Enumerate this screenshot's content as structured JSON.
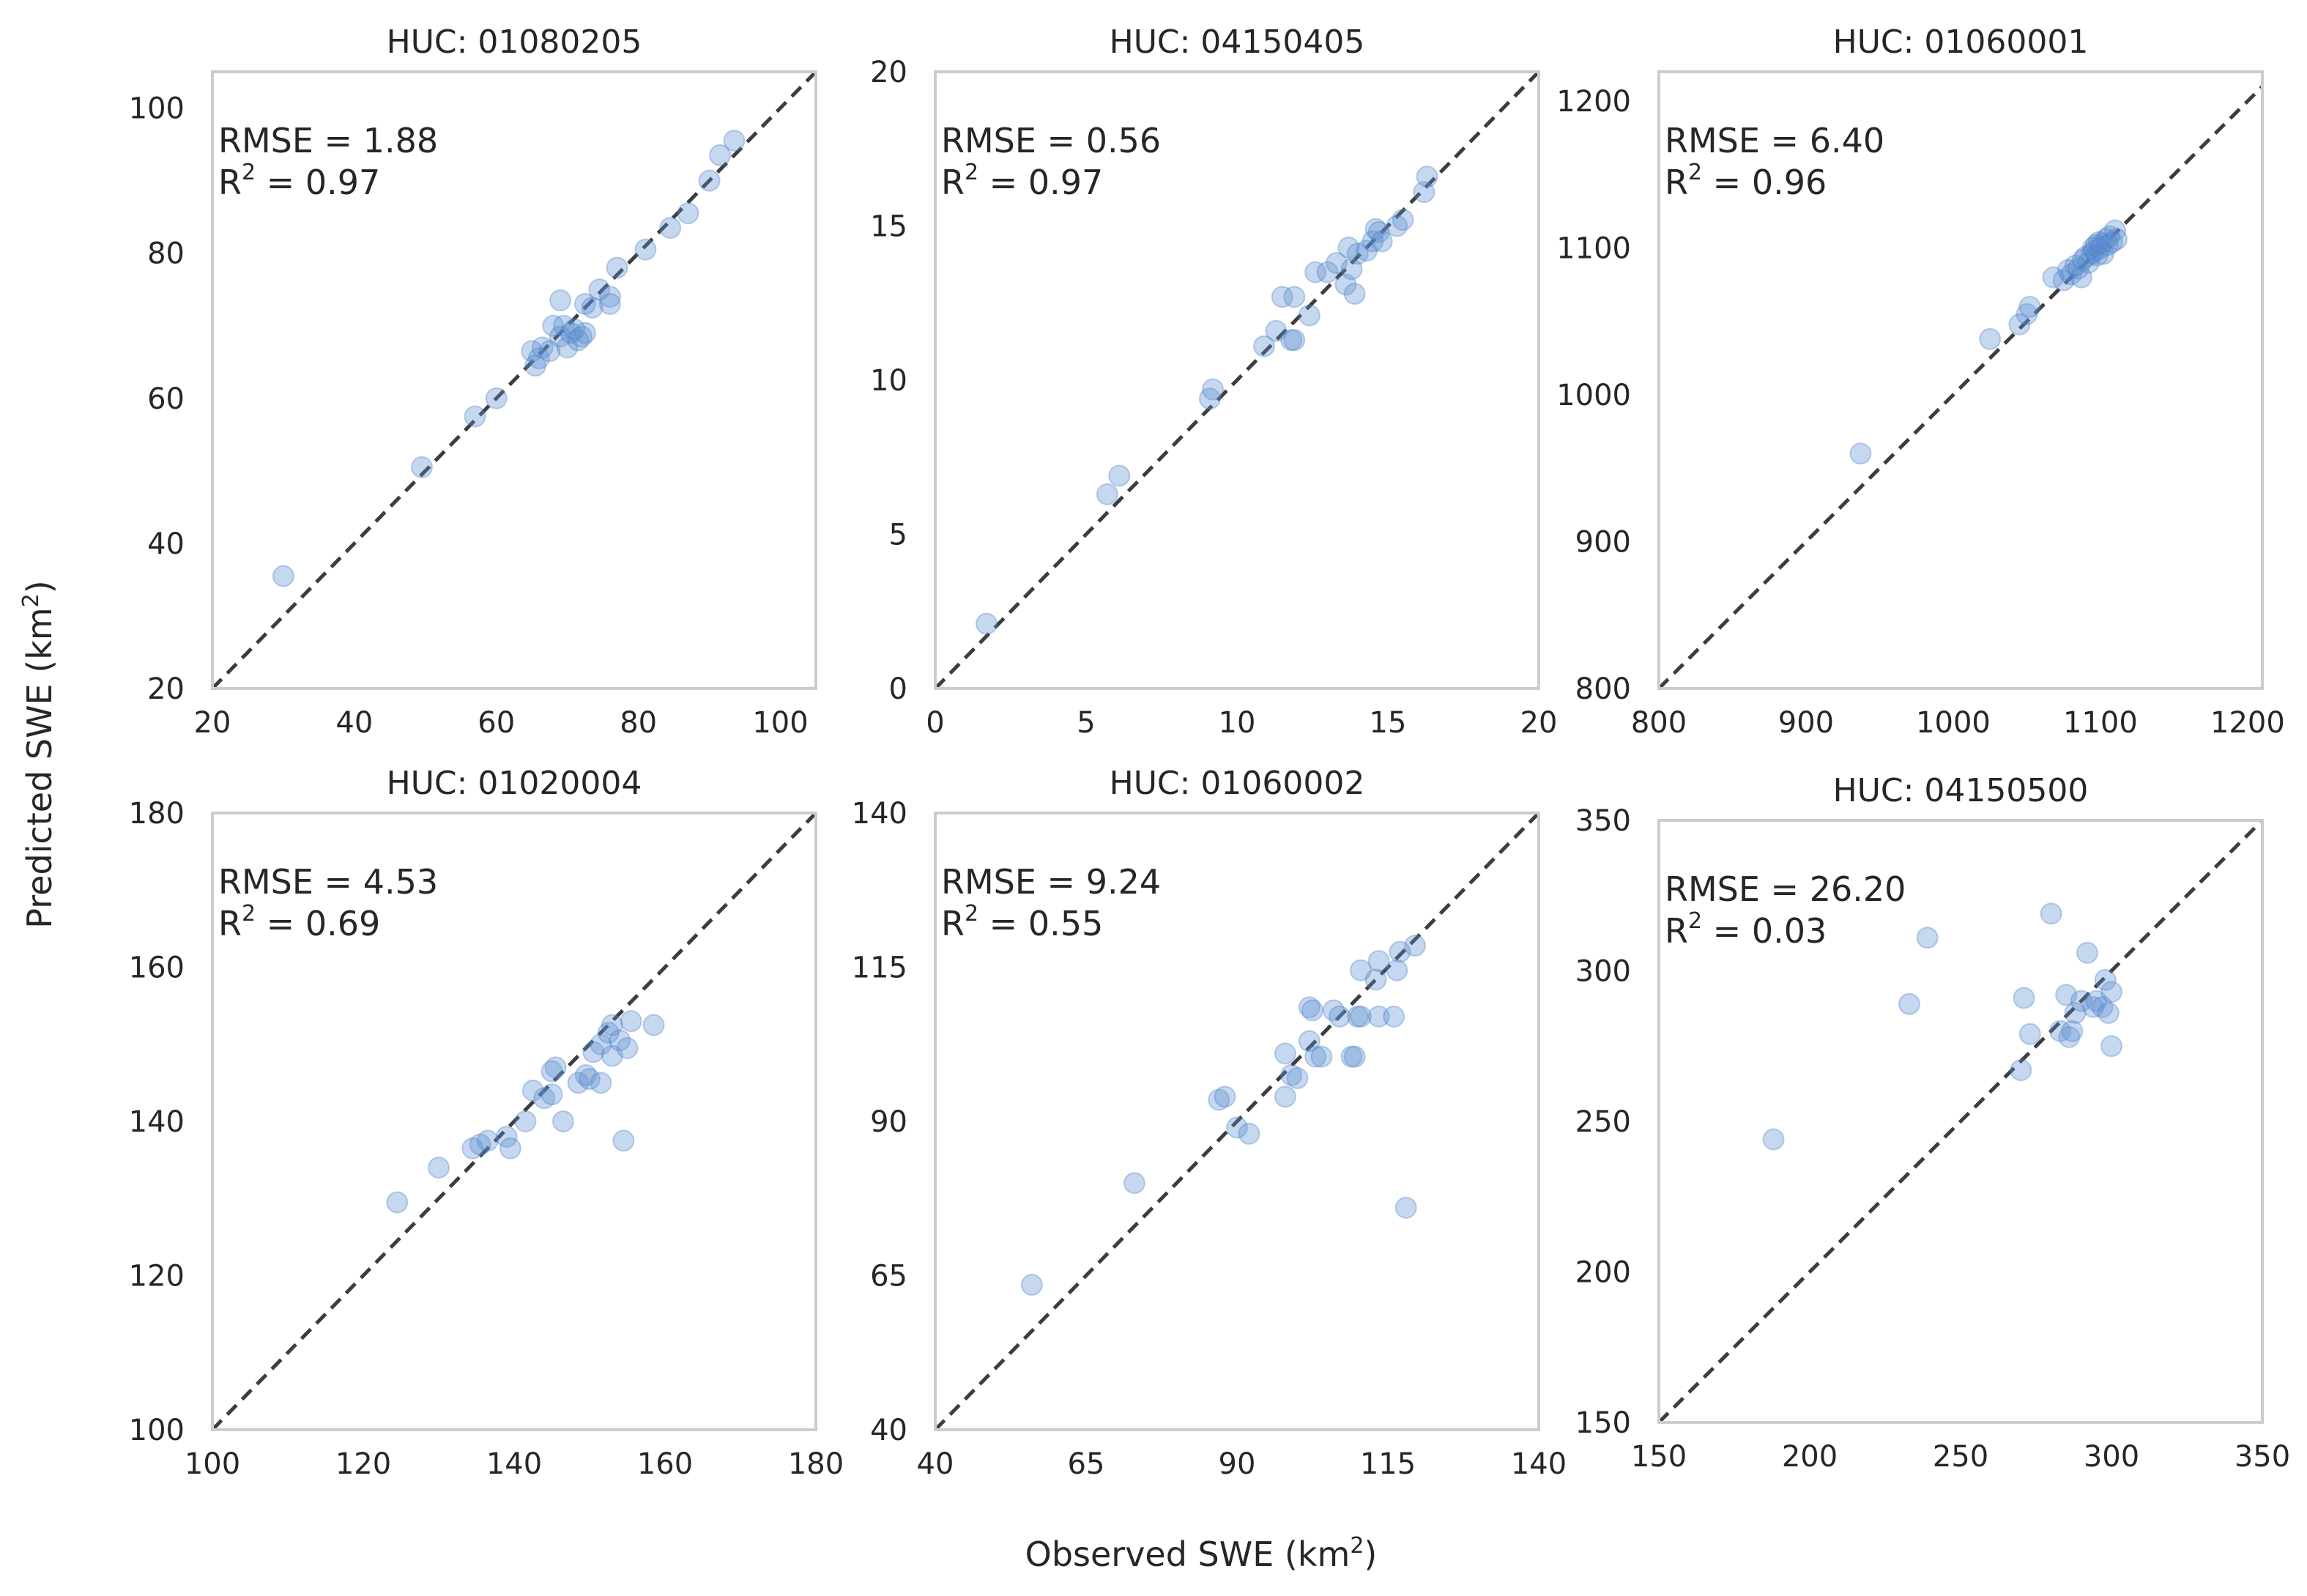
{
  "figure": {
    "xlabel": "Observed SWE (km",
    "ylabel": "Predicted SWE (km",
    "label_close": ")",
    "unit_superscript": "2"
  },
  "style": {
    "point_color": "#5b8fd1",
    "point_alpha": 0.35,
    "point_stroke": "#4a7ec2",
    "diagonal_color": "#3d3d3d",
    "frame_color": "#cccccc"
  },
  "chart_data": [
    {
      "type": "scatter",
      "title": "HUC: 01080205",
      "rmse_text": "RMSE = 1.88",
      "r2_label": "R",
      "r2_sup": "2",
      "r2_value": " = 0.97",
      "xlim": [
        20,
        105
      ],
      "ylim": [
        20,
        105
      ],
      "xticks": [
        20,
        40,
        60,
        80,
        100
      ],
      "yticks": [
        20,
        40,
        60,
        80,
        100
      ],
      "xlabel": "",
      "ylabel": "",
      "points": [
        [
          30,
          35.5
        ],
        [
          49.5,
          50.5
        ],
        [
          57,
          57.5
        ],
        [
          60,
          60
        ],
        [
          65,
          66.5
        ],
        [
          65.5,
          64.5
        ],
        [
          66,
          65.5
        ],
        [
          66.5,
          67
        ],
        [
          67.5,
          66.5
        ],
        [
          68,
          70
        ],
        [
          69,
          68.5
        ],
        [
          69,
          73.5
        ],
        [
          69.5,
          70
        ],
        [
          70,
          67
        ],
        [
          70.5,
          69
        ],
        [
          71,
          69.5
        ],
        [
          71.5,
          68
        ],
        [
          72,
          68.5
        ],
        [
          72.5,
          69
        ],
        [
          72.5,
          73
        ],
        [
          73.5,
          72.5
        ],
        [
          74.5,
          75
        ],
        [
          76,
          74
        ],
        [
          76,
          73
        ],
        [
          77,
          78
        ],
        [
          81,
          80.5
        ],
        [
          84.5,
          83.5
        ],
        [
          87,
          85.5
        ],
        [
          90,
          90
        ],
        [
          91.5,
          93.5
        ],
        [
          93.5,
          95.5
        ]
      ]
    },
    {
      "type": "scatter",
      "title": "HUC: 04150405",
      "rmse_text": "RMSE = 0.56",
      "r2_label": "R",
      "r2_sup": "2",
      "r2_value": " = 0.97",
      "xlim": [
        0,
        20
      ],
      "ylim": [
        0,
        20
      ],
      "xticks": [
        0,
        5,
        10,
        15,
        20
      ],
      "yticks": [
        0,
        5,
        10,
        15,
        20
      ],
      "xlabel": "",
      "ylabel": "",
      "points": [
        [
          1.7,
          2.1
        ],
        [
          5.7,
          6.3
        ],
        [
          6.1,
          6.9
        ],
        [
          9.1,
          9.4
        ],
        [
          9.2,
          9.7
        ],
        [
          10.9,
          11.1
        ],
        [
          11.3,
          11.6
        ],
        [
          11.5,
          12.7
        ],
        [
          11.8,
          11.3
        ],
        [
          11.9,
          12.7
        ],
        [
          11.9,
          11.3
        ],
        [
          12.4,
          12.1
        ],
        [
          12.6,
          13.5
        ],
        [
          13.0,
          13.5
        ],
        [
          13.3,
          13.8
        ],
        [
          13.6,
          13.1
        ],
        [
          13.7,
          14.3
        ],
        [
          13.8,
          13.6
        ],
        [
          13.9,
          12.8
        ],
        [
          14.0,
          14.1
        ],
        [
          14.3,
          14.2
        ],
        [
          14.5,
          14.5
        ],
        [
          14.6,
          14.9
        ],
        [
          14.7,
          14.8
        ],
        [
          14.8,
          14.5
        ],
        [
          15.3,
          15.0
        ],
        [
          15.5,
          15.2
        ],
        [
          16.2,
          16.1
        ],
        [
          16.3,
          16.6
        ]
      ]
    },
    {
      "type": "scatter",
      "title": "HUC: 01060001",
      "rmse_text": "RMSE = 6.40",
      "r2_label": "R",
      "r2_sup": "2",
      "r2_value": " = 0.96",
      "xlim": [
        800,
        1210
      ],
      "ylim": [
        800,
        1220
      ],
      "xticks": [
        800,
        900,
        1000,
        1100,
        1200
      ],
      "yticks": [
        800,
        900,
        1000,
        1100,
        1200
      ],
      "xlabel": "",
      "ylabel": "",
      "points": [
        [
          937,
          960
        ],
        [
          1025,
          1038
        ],
        [
          1045,
          1048
        ],
        [
          1050,
          1055
        ],
        [
          1052,
          1060
        ],
        [
          1068,
          1080
        ],
        [
          1075,
          1078
        ],
        [
          1078,
          1085
        ],
        [
          1080,
          1082
        ],
        [
          1083,
          1088
        ],
        [
          1085,
          1086
        ],
        [
          1087,
          1080
        ],
        [
          1088,
          1092
        ],
        [
          1090,
          1094
        ],
        [
          1092,
          1090
        ],
        [
          1094,
          1096
        ],
        [
          1095,
          1100
        ],
        [
          1096,
          1098
        ],
        [
          1097,
          1102
        ],
        [
          1098,
          1095
        ],
        [
          1099,
          1104
        ],
        [
          1100,
          1100
        ],
        [
          1101,
          1103
        ],
        [
          1102,
          1096
        ],
        [
          1104,
          1106
        ],
        [
          1105,
          1102
        ],
        [
          1106,
          1108
        ],
        [
          1108,
          1104
        ],
        [
          1110,
          1112
        ],
        [
          1111,
          1106
        ]
      ]
    },
    {
      "type": "scatter",
      "title": "HUC: 01020004",
      "rmse_text": "RMSE = 4.53",
      "r2_label": "R",
      "r2_sup": "2",
      "r2_value": " = 0.69",
      "xlim": [
        100,
        180
      ],
      "ylim": [
        100,
        180
      ],
      "xticks": [
        100,
        120,
        140,
        160,
        180
      ],
      "yticks": [
        100,
        120,
        140,
        160,
        180
      ],
      "xlabel": "",
      "ylabel": "",
      "points": [
        [
          124.5,
          129.5
        ],
        [
          130,
          134
        ],
        [
          134.5,
          136.5
        ],
        [
          135.5,
          137
        ],
        [
          136.5,
          137.5
        ],
        [
          139,
          138
        ],
        [
          139.5,
          136.5
        ],
        [
          141.5,
          140
        ],
        [
          142.5,
          144
        ],
        [
          144,
          143
        ],
        [
          145,
          146.5
        ],
        [
          145,
          143.5
        ],
        [
          145.5,
          147
        ],
        [
          146.5,
          140
        ],
        [
          148.5,
          145
        ],
        [
          149.5,
          146
        ],
        [
          150,
          145.5
        ],
        [
          150.5,
          149
        ],
        [
          151.5,
          145
        ],
        [
          151.5,
          150
        ],
        [
          152.5,
          151.5
        ],
        [
          153,
          148.5
        ],
        [
          153,
          152.5
        ],
        [
          154,
          150.5
        ],
        [
          154.5,
          137.5
        ],
        [
          155,
          149.5
        ],
        [
          155.5,
          153
        ],
        [
          158.5,
          152.5
        ]
      ]
    },
    {
      "type": "scatter",
      "title": "HUC: 01060002",
      "rmse_text": "RMSE = 9.24",
      "r2_label": "R",
      "r2_sup": "2",
      "r2_value": " = 0.55",
      "xlim": [
        40,
        140
      ],
      "ylim": [
        40,
        140
      ],
      "xticks": [
        40,
        65,
        90,
        115,
        140
      ],
      "yticks": [
        40,
        65,
        90,
        115,
        140
      ],
      "xlabel": "",
      "ylabel": "",
      "points": [
        [
          56,
          63.5
        ],
        [
          73,
          80
        ],
        [
          87,
          93.5
        ],
        [
          88,
          94
        ],
        [
          90,
          89
        ],
        [
          92,
          88
        ],
        [
          98,
          94
        ],
        [
          98,
          101
        ],
        [
          99,
          97.5
        ],
        [
          100,
          97
        ],
        [
          102,
          103
        ],
        [
          102,
          108.5
        ],
        [
          102.5,
          108
        ],
        [
          103,
          100.5
        ],
        [
          104,
          100.5
        ],
        [
          106,
          108
        ],
        [
          107,
          107
        ],
        [
          109,
          100.5
        ],
        [
          109.5,
          100.5
        ],
        [
          110,
          107
        ],
        [
          110.5,
          114.5
        ],
        [
          110.5,
          107
        ],
        [
          113,
          113
        ],
        [
          113.5,
          116
        ],
        [
          113.5,
          107
        ],
        [
          116,
          107
        ],
        [
          116.5,
          114.5
        ],
        [
          117,
          117.5
        ],
        [
          118,
          76
        ],
        [
          119.5,
          118.5
        ]
      ]
    },
    {
      "type": "scatter",
      "title": "HUC: 04150500",
      "rmse_text": "RMSE = 26.20",
      "r2_label": "R",
      "r2_sup": "2",
      "r2_value": " = 0.03",
      "xlim": [
        150,
        350
      ],
      "ylim": [
        150,
        350
      ],
      "xticks": [
        150,
        200,
        250,
        300,
        350
      ],
      "yticks": [
        150,
        200,
        250,
        300,
        350
      ],
      "xlabel": "",
      "ylabel": "",
      "points": [
        [
          188,
          244
        ],
        [
          233,
          289
        ],
        [
          239,
          311
        ],
        [
          270,
          267
        ],
        [
          271,
          291
        ],
        [
          273,
          279
        ],
        [
          280,
          319
        ],
        [
          283,
          280
        ],
        [
          285,
          292
        ],
        [
          286,
          278
        ],
        [
          287,
          280
        ],
        [
          288,
          286
        ],
        [
          290,
          290
        ],
        [
          292,
          306
        ],
        [
          294,
          288
        ],
        [
          295,
          290
        ],
        [
          297,
          288
        ],
        [
          298,
          297
        ],
        [
          299,
          286
        ],
        [
          300,
          293
        ],
        [
          300,
          275
        ]
      ]
    }
  ]
}
